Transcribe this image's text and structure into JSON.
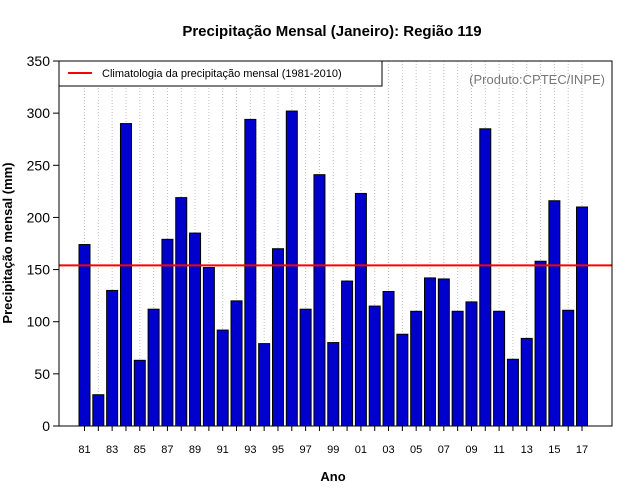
{
  "chart_data": {
    "type": "bar",
    "title": "Precipitação Mensal (Janeiro): Região 119",
    "xlabel": "Ano",
    "ylabel": "Precipitação mensal (mm)",
    "ylim": [
      0,
      350
    ],
    "yticks": [
      0,
      50,
      100,
      150,
      200,
      250,
      300,
      350
    ],
    "grid": "vertical dotted",
    "categories": [
      "81",
      "82",
      "83",
      "84",
      "85",
      "86",
      "87",
      "88",
      "89",
      "90",
      "91",
      "92",
      "93",
      "94",
      "95",
      "96",
      "97",
      "98",
      "99",
      "00",
      "01",
      "02",
      "03",
      "04",
      "05",
      "06",
      "07",
      "08",
      "09",
      "10",
      "11",
      "12",
      "13",
      "14",
      "15",
      "16",
      "17"
    ],
    "x_tick_labels": [
      "81",
      "83",
      "85",
      "87",
      "89",
      "91",
      "93",
      "95",
      "97",
      "99",
      "01",
      "03",
      "05",
      "07",
      "09",
      "11",
      "13",
      "15",
      "17"
    ],
    "values": [
      174,
      30,
      130,
      290,
      63,
      112,
      179,
      219,
      185,
      152,
      92,
      120,
      294,
      79,
      170,
      302,
      112,
      241,
      80,
      139,
      223,
      115,
      129,
      88,
      110,
      142,
      141,
      110,
      119,
      285,
      110,
      64,
      84,
      158,
      216,
      111,
      210
    ],
    "climatology": {
      "label": "Climatologia da precipitação mensal (1981-2010)",
      "value": 154,
      "color": "#ff0000"
    },
    "legend_position": "top-left",
    "bar_color": "#0000cc",
    "source_note": "(Produto:CPTEC/INPE)"
  }
}
